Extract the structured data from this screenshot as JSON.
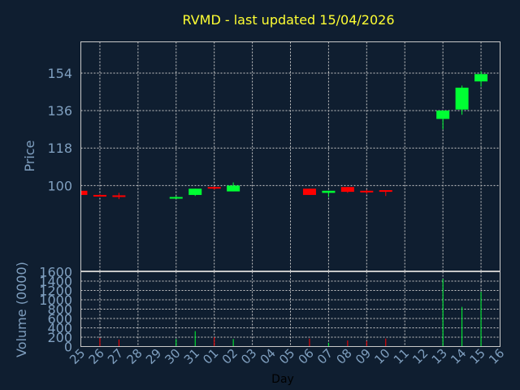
{
  "chart_data": {
    "type": "candlestick",
    "title": "RVMD - last updated 15/04/2026",
    "xlabel": "Day",
    "price_panel": {
      "ylabel": "Price",
      "ylim": [
        59,
        169
      ],
      "yticks": [
        100,
        118,
        136,
        154
      ],
      "grid": true
    },
    "volume_panel": {
      "ylabel": "Volume (0000)",
      "ylim": [
        0,
        1600
      ],
      "yticks": [
        0,
        200,
        400,
        600,
        800,
        1000,
        1200,
        1400,
        1600
      ],
      "grid": true
    },
    "x_tick_labels": [
      "25",
      "26",
      "27",
      "28",
      "29",
      "30",
      "31",
      "01",
      "02",
      "03",
      "04",
      "05",
      "06",
      "07",
      "08",
      "09",
      "10",
      "11",
      "12",
      "13",
      "14",
      "15",
      "16"
    ],
    "candles": [
      {
        "day": "25",
        "open": 97.5,
        "close": 95.5,
        "high": 97.5,
        "low": 95.5,
        "volume": 0
      },
      {
        "day": "26",
        "open": 95.5,
        "close": 95.3,
        "high": 95.8,
        "low": 95.0,
        "volume": 180
      },
      {
        "day": "27",
        "open": 95.3,
        "close": 94.6,
        "high": 96.5,
        "low": 93.5,
        "volume": 150
      },
      {
        "day": "30",
        "open": 94.2,
        "close": 94.5,
        "high": 95.0,
        "low": 93.8,
        "volume": 160
      },
      {
        "day": "31",
        "open": 95.5,
        "close": 98.5,
        "high": 98.5,
        "low": 95.0,
        "volume": 330
      },
      {
        "day": "01",
        "open": 99.3,
        "close": 98.8,
        "high": 99.5,
        "low": 98.0,
        "volume": 200
      },
      {
        "day": "02",
        "open": 97.2,
        "close": 100.0,
        "high": 101.5,
        "low": 97.2,
        "volume": 160
      },
      {
        "day": "06",
        "open": 98.5,
        "close": 95.5,
        "high": 98.5,
        "low": 95.5,
        "volume": 170
      },
      {
        "day": "07",
        "open": 96.5,
        "close": 97.5,
        "high": 97.5,
        "low": 94.5,
        "volume": 80
      },
      {
        "day": "08",
        "open": 99.3,
        "close": 97.0,
        "high": 99.3,
        "low": 96.5,
        "volume": 130
      },
      {
        "day": "09",
        "open": 97.5,
        "close": 97.0,
        "high": 98.0,
        "low": 96.0,
        "volume": 120
      },
      {
        "day": "10",
        "open": 97.8,
        "close": 97.0,
        "high": 97.8,
        "low": 95.0,
        "volume": 170
      },
      {
        "day": "13",
        "open": 132.0,
        "close": 136.0,
        "high": 136.0,
        "low": 127.0,
        "volume": 1450
      },
      {
        "day": "14",
        "open": 136.5,
        "close": 147.0,
        "high": 148.0,
        "low": 134.0,
        "volume": 850
      },
      {
        "day": "15",
        "open": 150.0,
        "close": 153.5,
        "high": 155.0,
        "low": 147.5,
        "volume": 1170
      }
    ],
    "colors": {
      "up": "#00ff33",
      "down": "#ff0000",
      "background": "#0f1e30",
      "grid": "#c8c8c8",
      "tick_text": "#7f9fbf",
      "title_text": "#ffff33"
    }
  }
}
